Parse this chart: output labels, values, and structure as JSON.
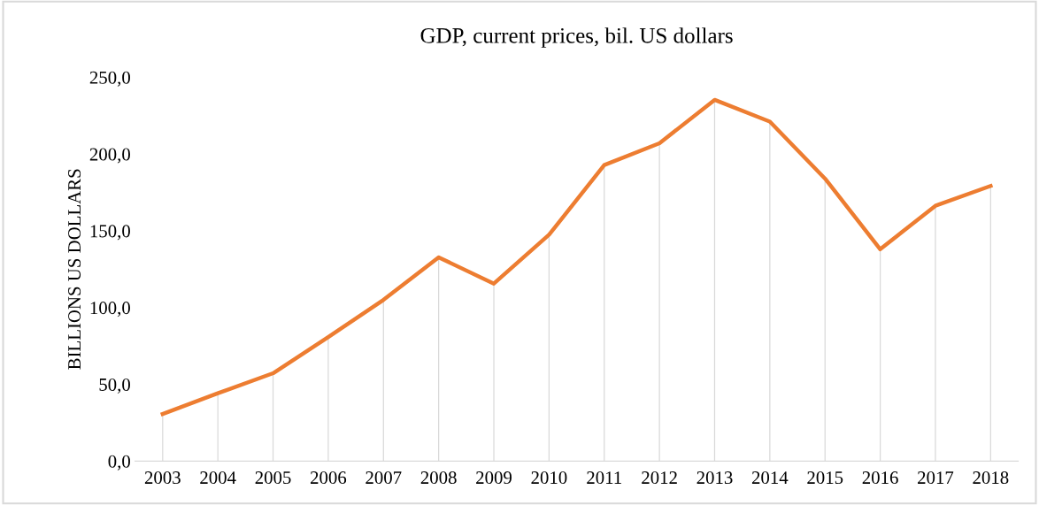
{
  "chart_data": {
    "type": "line",
    "title": "GDP, current prices, bil. US dollars",
    "ylabel": "BILLIONS US DOLLARS",
    "categories": [
      "2003",
      "2004",
      "2005",
      "2006",
      "2007",
      "2008",
      "2009",
      "2010",
      "2011",
      "2012",
      "2013",
      "2014",
      "2015",
      "2016",
      "2017",
      "2018"
    ],
    "series": [
      {
        "type": "bar",
        "color": "#d9d9d9",
        "values": [
          30.7,
          44.2,
          57.2,
          80.8,
          105,
          132.7,
          115.6,
          147.4,
          192.8,
          207,
          235.3,
          221.1,
          184,
          138,
          166.3,
          179.2
        ]
      },
      {
        "color": "#ed7d31",
        "values": [
          30.7,
          44.2,
          57.2,
          80.8,
          105,
          132.7,
          115.6,
          147.4,
          192.8,
          207,
          235.3,
          221.1,
          184,
          138,
          166.3,
          179.2
        ]
      }
    ],
    "ylim": [
      0,
      250
    ],
    "yticks": [
      {
        "value": 0,
        "label": "0,0"
      },
      {
        "value": 50,
        "label": "50,0"
      },
      {
        "value": 100,
        "label": "100,0"
      },
      {
        "value": 150,
        "label": "150,0"
      },
      {
        "value": 200,
        "label": "200,0"
      },
      {
        "value": 250,
        "label": "250,0"
      }
    ],
    "grid": false,
    "legend": false,
    "marker": "none",
    "line_style": "solid"
  }
}
